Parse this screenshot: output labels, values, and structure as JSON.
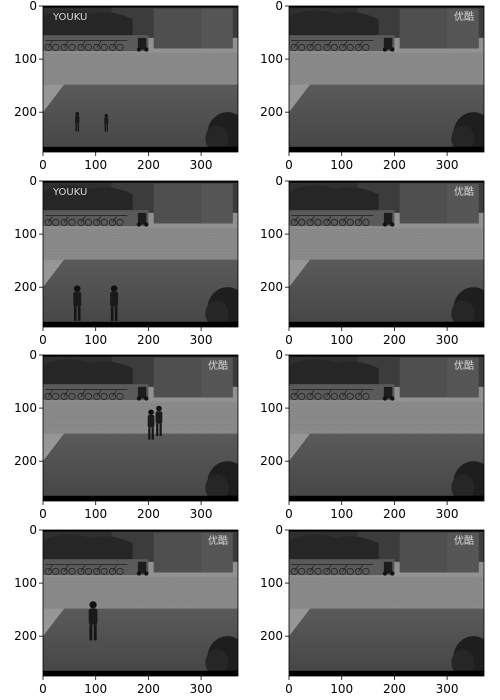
{
  "figure": {
    "panels": [
      {
        "row": 0,
        "col": 0,
        "watermark": "YOUKU",
        "people": [
          {
            "x": 65,
            "y": 240,
            "scale": 0.55
          },
          {
            "x": 120,
            "y": 240,
            "scale": 0.5
          }
        ]
      },
      {
        "row": 0,
        "col": 1,
        "watermark": "优酷",
        "people": []
      },
      {
        "row": 1,
        "col": 0,
        "watermark": "YOUKU",
        "people": [
          {
            "x": 65,
            "y": 270,
            "scale": 1.0
          },
          {
            "x": 135,
            "y": 270,
            "scale": 1.0
          }
        ]
      },
      {
        "row": 1,
        "col": 1,
        "watermark": "优酷",
        "people": []
      },
      {
        "row": 2,
        "col": 0,
        "watermark": "优酷",
        "people": [
          {
            "x": 205,
            "y": 165,
            "scale": 0.85
          },
          {
            "x": 220,
            "y": 158,
            "scale": 0.85
          }
        ]
      },
      {
        "row": 2,
        "col": 1,
        "watermark": "优酷",
        "people": []
      },
      {
        "row": 3,
        "col": 0,
        "watermark": "优酷",
        "people": [
          {
            "x": 95,
            "y": 215,
            "scale": 1.1
          }
        ]
      },
      {
        "row": 3,
        "col": 1,
        "watermark": "优酷",
        "people": []
      }
    ],
    "x_ticks": [
      "0",
      "100",
      "200",
      "300"
    ],
    "y_ticks": [
      "0",
      "100",
      "200"
    ],
    "x_tick_values": [
      0,
      100,
      200,
      300
    ],
    "y_tick_values": [
      0,
      100,
      200
    ],
    "image_width_units": 370,
    "image_height_units": 275
  }
}
